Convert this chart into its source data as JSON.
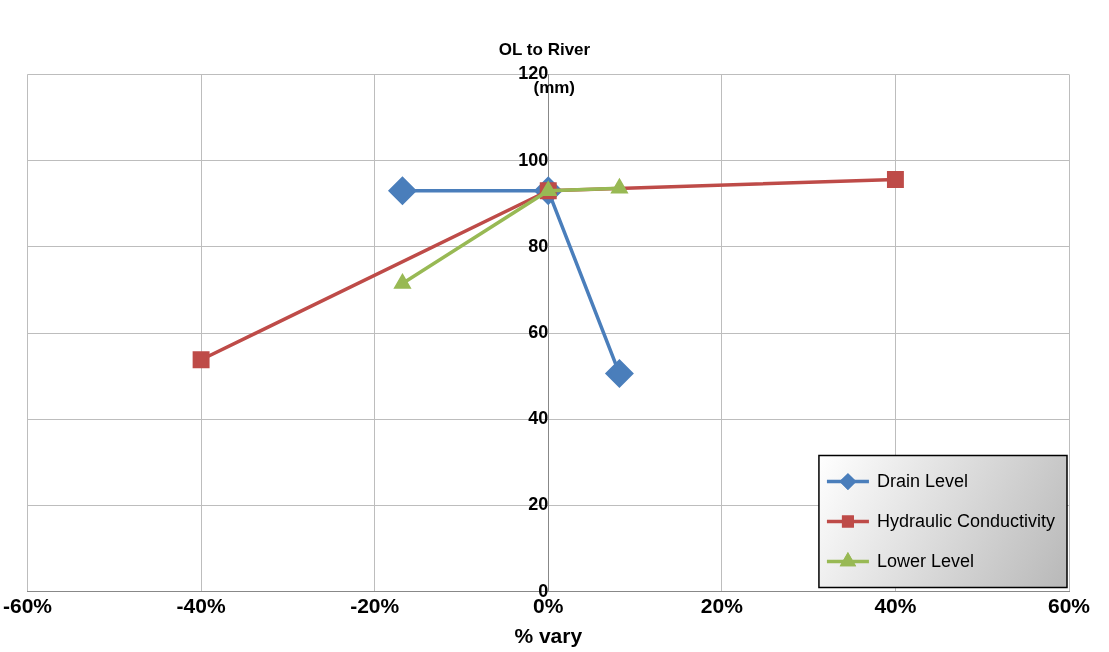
{
  "chart_data": {
    "type": "line",
    "title": "OL to River",
    "ylabel": "(mm)",
    "xlabel": "% vary",
    "xlim": [
      -60,
      60
    ],
    "xticks": [
      {
        "value": -60,
        "label": "-60%"
      },
      {
        "value": -40,
        "label": "-40%"
      },
      {
        "value": -20,
        "label": "-20%"
      },
      {
        "value": 0,
        "label": "0%"
      },
      {
        "value": 20,
        "label": "20%"
      },
      {
        "value": 40,
        "label": "40%"
      },
      {
        "value": 60,
        "label": "60%"
      }
    ],
    "ylim": [
      0,
      120
    ],
    "yticks": [
      0,
      20,
      40,
      60,
      80,
      100,
      120
    ],
    "grid": true,
    "legend": "bottom right",
    "line_style": "solid",
    "series": [
      {
        "name": "Drain Level",
        "color": "#4a7ebb",
        "marker": "diamond",
        "x": [
          -16.8,
          0,
          8.2
        ],
        "values": [
          93,
          93,
          50.6
        ]
      },
      {
        "name": "Hydraulic Conductivity",
        "color": "#be4b48",
        "marker": "square",
        "x": [
          -40,
          0,
          40
        ],
        "values": [
          53.8,
          93,
          95.6
        ]
      },
      {
        "name": "Lower Level",
        "color": "#98b954",
        "marker": "triangle",
        "x": [
          -16.8,
          0,
          8.2
        ],
        "values": [
          71.5,
          93,
          93.6
        ]
      }
    ]
  }
}
